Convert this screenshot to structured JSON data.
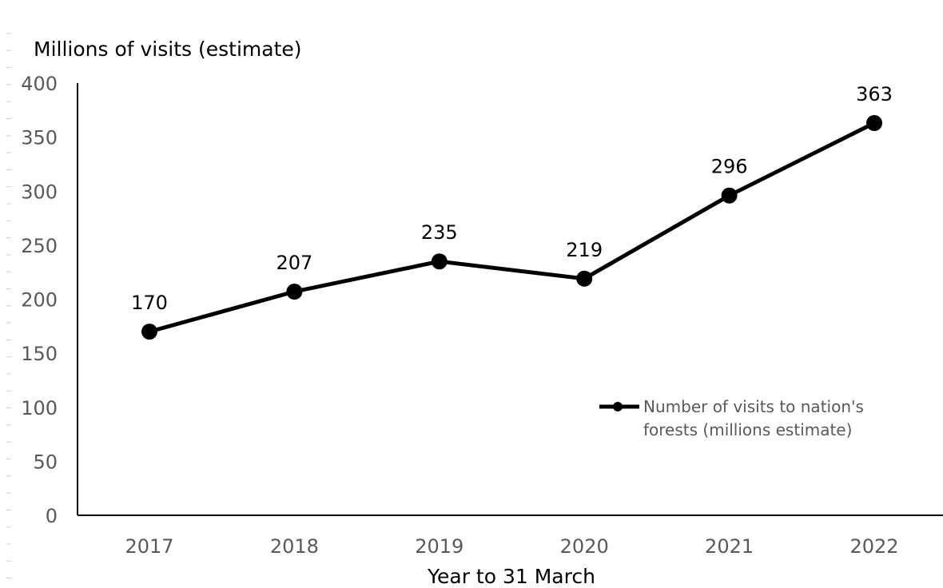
{
  "chart_data": {
    "type": "line",
    "ylabel": "Millions of visits (estimate)",
    "xlabel": "Year to 31 March",
    "categories": [
      "2017",
      "2018",
      "2019",
      "2020",
      "2021",
      "2022"
    ],
    "series": [
      {
        "name": "Number of visits to nation's forests (millions estimate)",
        "values": [
          170,
          207,
          235,
          219,
          296,
          363
        ],
        "color": "#000000"
      }
    ],
    "data_labels": [
      "170",
      "207",
      "235",
      "219",
      "296",
      "363"
    ],
    "yticks": [
      "0",
      "50",
      "100",
      "150",
      "200",
      "250",
      "300",
      "350",
      "400"
    ],
    "ylim": [
      0,
      400
    ],
    "grid": false,
    "legend": {
      "position": "right",
      "lines": [
        "Number of visits to nation's",
        "forests (millions estimate)"
      ]
    }
  }
}
